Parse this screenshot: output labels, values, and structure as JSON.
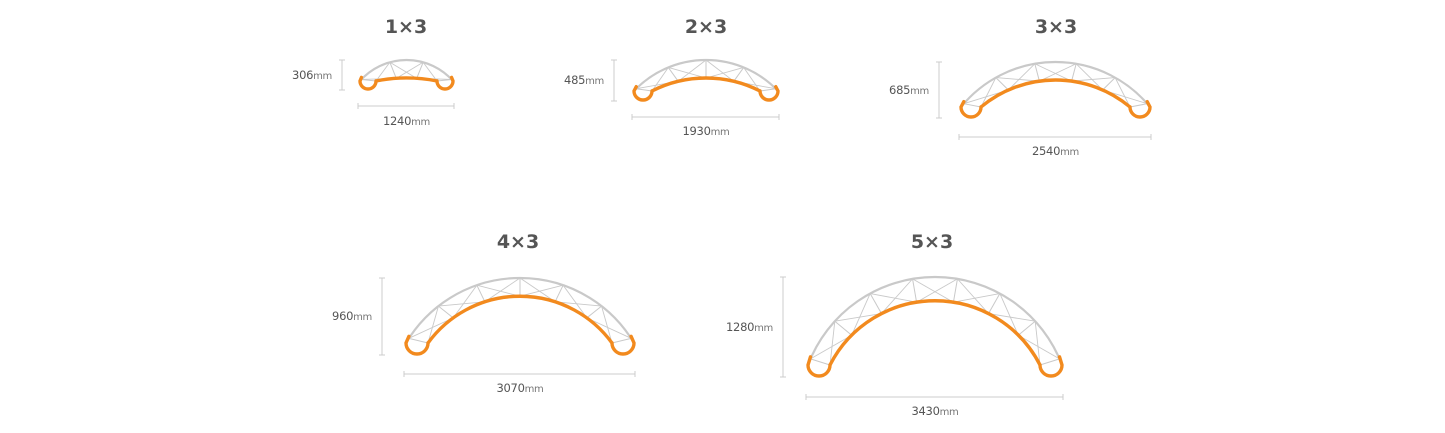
{
  "colors": {
    "frame": "#c9c9c9",
    "accent": "#f28a1e",
    "text": "#555555",
    "dimension": "#cccccc"
  },
  "unit": "mm",
  "items": [
    {
      "title": "1×3",
      "height": "306",
      "width": "1240"
    },
    {
      "title": "2×3",
      "height": "485",
      "width": "1930"
    },
    {
      "title": "3×3",
      "height": "685",
      "width": "2540"
    },
    {
      "title": "4×3",
      "height": "960",
      "width": "3070"
    },
    {
      "title": "5×3",
      "height": "1280",
      "width": "3430"
    }
  ]
}
